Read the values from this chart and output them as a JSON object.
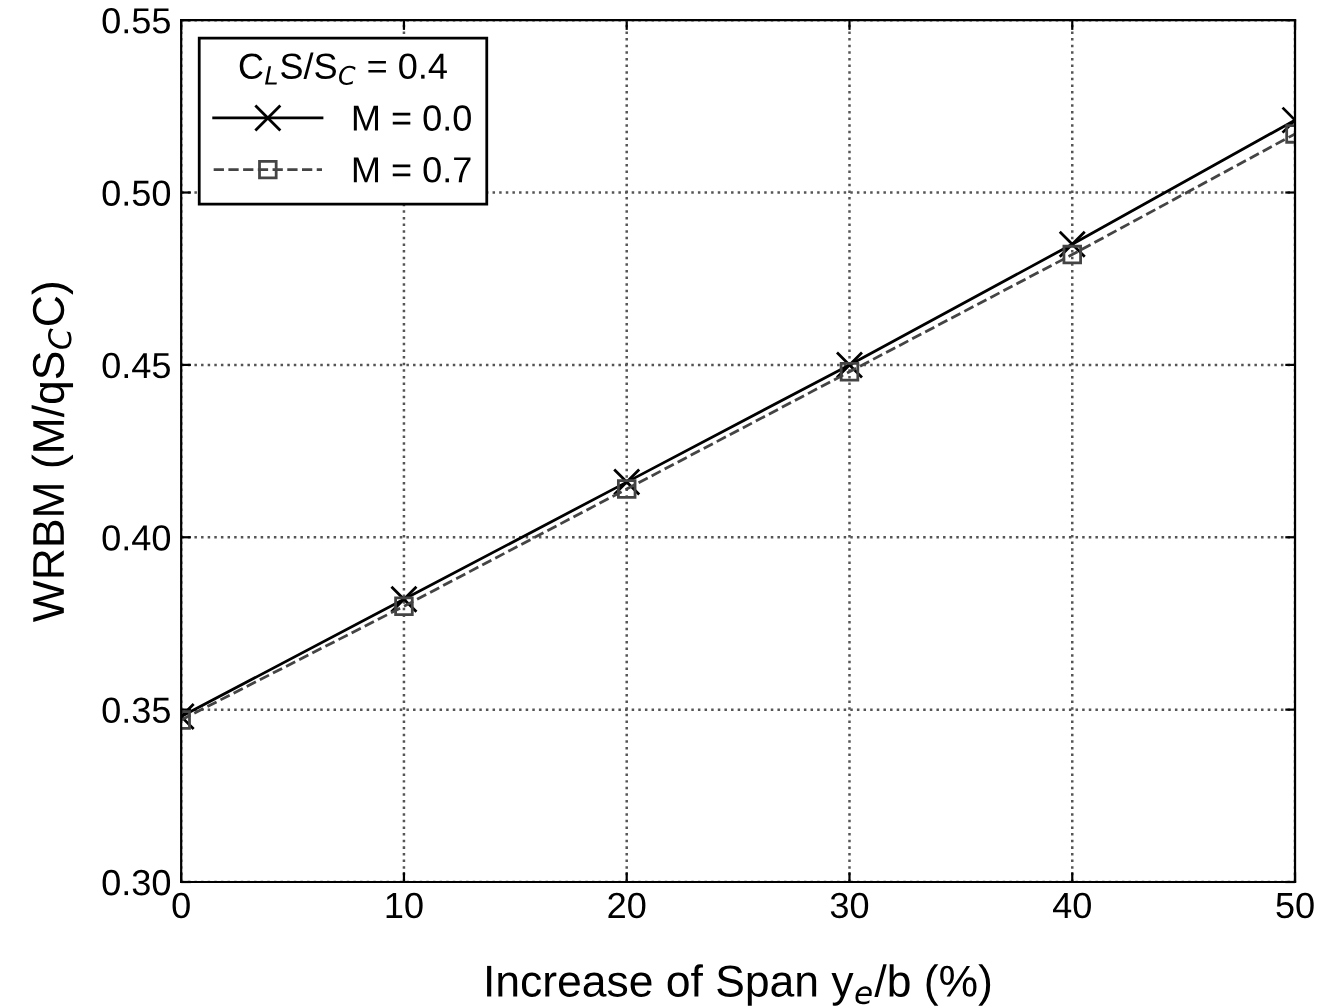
{
  "chart_data": {
    "type": "line",
    "xlabel": "Increase of Span y$_{e}$/b (%)",
    "ylabel": "WRBM (M/qS$_{C}$C)",
    "legend_title": "C$_{L}$S/S$_{C}$ = 0.4",
    "x": [
      0,
      10,
      20,
      30,
      40,
      50
    ],
    "series": [
      {
        "name": "M = 0.0",
        "color": "#000000",
        "values": [
          0.348,
          0.382,
          0.416,
          0.45,
          0.485,
          0.521
        ],
        "marker": "cross",
        "line_style": "solid"
      },
      {
        "name": "M = 0.7",
        "color": "#444444",
        "values": [
          0.347,
          0.38,
          0.414,
          0.448,
          0.482,
          0.517
        ],
        "marker": "square",
        "line_style": "dashed"
      }
    ],
    "xlim": [
      0,
      50
    ],
    "xticks": [
      0,
      10,
      20,
      30,
      40,
      50
    ],
    "ylim": [
      0.3,
      0.55
    ],
    "yticks": [
      {
        "value": 0.3,
        "label": "0.30"
      },
      {
        "value": 0.35,
        "label": "0.35"
      },
      {
        "value": 0.4,
        "label": "0.40"
      },
      {
        "value": 0.45,
        "label": "0.45"
      },
      {
        "value": 0.5,
        "label": "0.50"
      },
      {
        "value": 0.55,
        "label": "0.55"
      }
    ],
    "grid": true,
    "legend": "top left"
  }
}
